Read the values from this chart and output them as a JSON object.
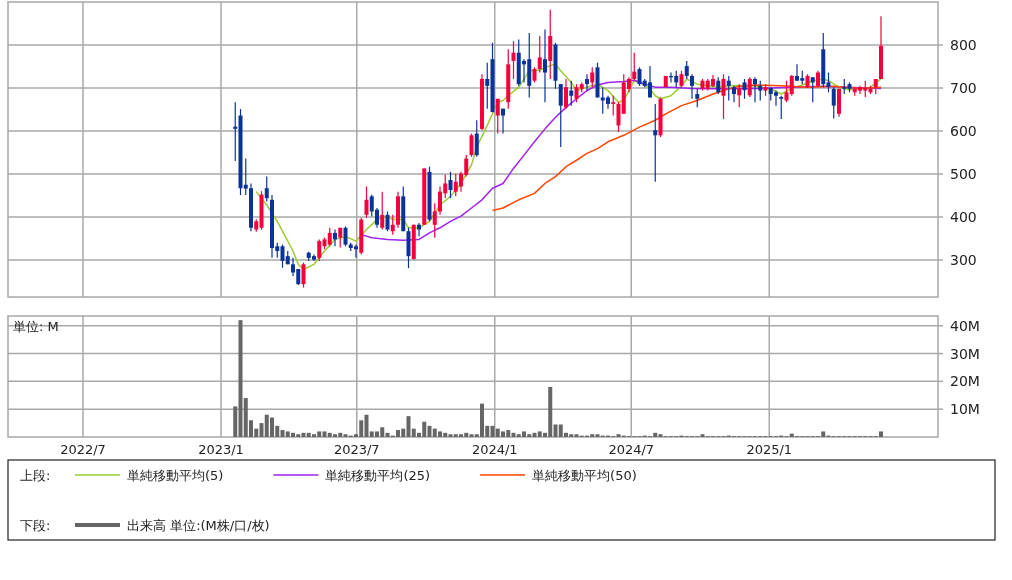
{
  "chart_data": [
    {
      "type": "candlestick",
      "colors": [
        "#0a3399",
        "#0a3399",
        "#0a3399",
        "#0a3399",
        "#f5003c",
        "#f5003c",
        "#0a3399",
        "#0a3399",
        "#0a3399",
        "#0a3399",
        "#0a3399",
        "#0a3399",
        "#0a3399",
        "#f5003c",
        "#0a3399",
        "#0a3399",
        "#f5003c",
        "#f5003c",
        "#f5003c",
        "#0a3399",
        "#f5003c",
        "#0a3399",
        "#0a3399",
        "#0a3399",
        "#f5003c",
        "#f5003c",
        "#0a3399",
        "#0a3399",
        "#f5003c",
        "#0a3399",
        "#f5003c",
        "#f5003c",
        "#0a3399",
        "#0a3399",
        "#f5003c",
        "#0a3399",
        "#f5003c",
        "#0a3399",
        "#f5003c",
        "#f5003c",
        "#f5003c",
        "#0a3399",
        "#f5003c",
        "#f5003c",
        "#f5003c",
        "#f5003c",
        "#0a3399",
        "#f5003c",
        "#0a3399",
        "#0a3399",
        "#f5003c",
        "#0a3399",
        "#f5003c",
        "#f5003c",
        "#0a3399",
        "#0a3399",
        "#0a3399",
        "#f5003c",
        "#f5003c",
        "#0a3399",
        "#f5003c",
        "#0a3399",
        "#0a3399",
        "#f5003c",
        "#0a3399",
        "#f5003c",
        "#f5003c",
        "#0a3399",
        "#f5003c",
        "#0a3399",
        "#0a3399",
        "#0a3399",
        "#f5003c",
        "#f5003c",
        "#f5003c",
        "#f5003c",
        "#f5003c",
        "#0a3399",
        "#0a3399",
        "#0a3399",
        "#0a3399",
        "#f5003c",
        "#f5003c",
        "#0a3399",
        "#0a3399",
        "#f5003c",
        "#0a3399",
        "#0a3399",
        "#0a3399",
        "#f5003c",
        "#f5003c",
        "#f5003c",
        "#0a3399",
        "#f5003c",
        "#0a3399",
        "#0a3399",
        "#f5003c",
        "#0a3399",
        "#f5003c",
        "#0a3399",
        "#0a3399",
        "#f5003c",
        "#0a3399",
        "#0a3399",
        "#0a3399",
        "#f5003c",
        "#f5003c",
        "#0a3399",
        "#0a3399",
        "#f5003c",
        "#0a3399",
        "#f5003c",
        "#0a3399",
        "#0a3399",
        "#0a3399",
        "#f5003c",
        "#0a3399",
        "#0a3399",
        "#f5003c",
        "#f5003c",
        "#f5003c",
        "#f5003c",
        "#f5003c",
        "#f5003c"
      ],
      "xlim": [
        "2022-03-23",
        "2025-08-14"
      ],
      "ylim": [
        214,
        900
      ],
      "yticks": [
        300,
        400,
        500,
        600,
        700,
        800
      ],
      "xticks": [
        {
          "value": "2022-07-01",
          "label": null
        },
        {
          "value": "2023-01-01",
          "label": null
        },
        {
          "value": "2023-07-01",
          "label": null
        },
        {
          "value": "2024-01-01",
          "label": null
        },
        {
          "value": "2024-07-01",
          "label": null
        },
        {
          "value": "2025-01-01",
          "label": null
        }
      ],
      "tick_labels": "y",
      "grid": true,
      "legend": "bottom",
      "legend_title": "上段:",
      "x": [
        "2023-01-20",
        "2023-01-27",
        "2023-02-03",
        "2023-02-10",
        "2023-02-17",
        "2023-02-24",
        "2023-03-03",
        "2023-03-10",
        "2023-03-17",
        "2023-03-24",
        "2023-03-31",
        "2023-04-07",
        "2023-04-14",
        "2023-04-21",
        "2023-04-28",
        "2023-05-05",
        "2023-05-12",
        "2023-05-19",
        "2023-05-26",
        "2023-06-02",
        "2023-06-09",
        "2023-06-16",
        "2023-06-23",
        "2023-06-30",
        "2023-07-07",
        "2023-07-14",
        "2023-07-21",
        "2023-07-28",
        "2023-08-04",
        "2023-08-11",
        "2023-08-18",
        "2023-08-25",
        "2023-09-01",
        "2023-09-08",
        "2023-09-15",
        "2023-09-22",
        "2023-09-29",
        "2023-10-06",
        "2023-10-13",
        "2023-10-20",
        "2023-10-27",
        "2023-11-03",
        "2023-11-10",
        "2023-11-17",
        "2023-11-24",
        "2023-12-01",
        "2023-12-08",
        "2023-12-15",
        "2023-12-22",
        "2023-12-29",
        "2024-01-05",
        "2024-01-12",
        "2024-01-19",
        "2024-01-26",
        "2024-02-02",
        "2024-02-09",
        "2024-02-16",
        "2024-02-23",
        "2024-03-01",
        "2024-03-08",
        "2024-03-15",
        "2024-03-22",
        "2024-03-29",
        "2024-04-05",
        "2024-04-12",
        "2024-04-19",
        "2024-04-26",
        "2024-05-03",
        "2024-05-10",
        "2024-05-17",
        "2024-05-24",
        "2024-05-31",
        "2024-06-07",
        "2024-06-14",
        "2024-06-21",
        "2024-06-28",
        "2024-07-05",
        "2024-07-12",
        "2024-07-19",
        "2024-07-26",
        "2024-08-02",
        "2024-08-09",
        "2024-08-16",
        "2024-08-23",
        "2024-08-30",
        "2024-09-06",
        "2024-09-13",
        "2024-09-20",
        "2024-09-27",
        "2024-10-04",
        "2024-10-11",
        "2024-10-18",
        "2024-10-25",
        "2024-11-01",
        "2024-11-08",
        "2024-11-15",
        "2024-11-22",
        "2024-11-29",
        "2024-12-06",
        "2024-12-13",
        "2024-12-20",
        "2024-12-27",
        "2025-01-03",
        "2025-01-10",
        "2025-01-17",
        "2025-01-24",
        "2025-01-31",
        "2025-02-07",
        "2025-02-14",
        "2025-02-21",
        "2025-02-28",
        "2025-03-07",
        "2025-03-14",
        "2025-03-21",
        "2025-03-28",
        "2025-04-04",
        "2025-04-11",
        "2025-04-18",
        "2025-04-25",
        "2025-05-02",
        "2025-05-09",
        "2025-05-16",
        "2025-05-23",
        "2025-05-30"
      ],
      "ohlc": [
        [
          610,
          667,
          530,
          605
        ],
        [
          636,
          651,
          451,
          467
        ],
        [
          475,
          536,
          451,
          466
        ],
        [
          467,
          478,
          367,
          375
        ],
        [
          371,
          395,
          366,
          390
        ],
        [
          375,
          460,
          370,
          452
        ],
        [
          467,
          494,
          436,
          444
        ],
        [
          440,
          451,
          305,
          328
        ],
        [
          332,
          340,
          305,
          321
        ],
        [
          332,
          336,
          282,
          298
        ],
        [
          309,
          321,
          290,
          290
        ],
        [
          290,
          305,
          263,
          271
        ],
        [
          279,
          279,
          242,
          244
        ],
        [
          244,
          294,
          236,
          290
        ],
        [
          317,
          319,
          298,
          305
        ],
        [
          309,
          313,
          298,
          301
        ],
        [
          305,
          348,
          298,
          344
        ],
        [
          332,
          352,
          325,
          348
        ],
        [
          336,
          375,
          332,
          363
        ],
        [
          363,
          371,
          332,
          348
        ],
        [
          352,
          375,
          329,
          375
        ],
        [
          375,
          378,
          332,
          336
        ],
        [
          336,
          340,
          321,
          328
        ],
        [
          332,
          336,
          305,
          325
        ],
        [
          317,
          398,
          313,
          394
        ],
        [
          405,
          471,
          398,
          440
        ],
        [
          448,
          452,
          402,
          413
        ],
        [
          417,
          421,
          375,
          382
        ],
        [
          375,
          459,
          371,
          405
        ],
        [
          405,
          413,
          367,
          371
        ],
        [
          367,
          405,
          359,
          382
        ],
        [
          382,
          459,
          375,
          448
        ],
        [
          448,
          471,
          367,
          367
        ],
        [
          367,
          375,
          281,
          309
        ],
        [
          302,
          382,
          302,
          382
        ],
        [
          382,
          386,
          355,
          371
        ],
        [
          382,
          513,
          382,
          513
        ],
        [
          505,
          517,
          390,
          394
        ],
        [
          382,
          432,
          352,
          413
        ],
        [
          413,
          471,
          405,
          459
        ],
        [
          455,
          498,
          444,
          478
        ],
        [
          486,
          505,
          444,
          463
        ],
        [
          459,
          501,
          448,
          482
        ],
        [
          471,
          505,
          459,
          501
        ],
        [
          498,
          544,
          494,
          536
        ],
        [
          544,
          594,
          540,
          590
        ],
        [
          594,
          625,
          540,
          544
        ],
        [
          605,
          732,
          602,
          721
        ],
        [
          721,
          759,
          652,
          705
        ],
        [
          767,
          805,
          644,
          644
        ],
        [
          636,
          675,
          594,
          675
        ],
        [
          652,
          652,
          594,
          636
        ],
        [
          667,
          790,
          652,
          755
        ],
        [
          763,
          809,
          721,
          782
        ],
        [
          782,
          813,
          705,
          709
        ],
        [
          763,
          767,
          713,
          755
        ],
        [
          767,
          828,
          678,
          705
        ],
        [
          717,
          748,
          713,
          744
        ],
        [
          744,
          821,
          736,
          771
        ],
        [
          767,
          836,
          667,
          736
        ],
        [
          763,
          882,
          721,
          821
        ],
        [
          801,
          805,
          698,
          717
        ],
        [
          709,
          709,
          563,
          659
        ],
        [
          655,
          721,
          652,
          702
        ],
        [
          694,
          717,
          659,
          682
        ],
        [
          675,
          709,
          667,
          702
        ],
        [
          698,
          713,
          690,
          709
        ],
        [
          721,
          732,
          694,
          709
        ],
        [
          713,
          748,
          702,
          736
        ],
        [
          748,
          759,
          678,
          678
        ],
        [
          678,
          702,
          640,
          671
        ],
        [
          678,
          682,
          652,
          663
        ],
        [
          663,
          682,
          636,
          667
        ],
        [
          613,
          667,
          598,
          663
        ],
        [
          640,
          732,
          640,
          713
        ],
        [
          698,
          725,
          690,
          721
        ],
        [
          721,
          782,
          717,
          738
        ],
        [
          744,
          748,
          705,
          709
        ],
        [
          717,
          721,
          702,
          705
        ],
        [
          713,
          751,
          678,
          678
        ],
        [
          602,
          663,
          482,
          590
        ],
        [
          590,
          678,
          586,
          675
        ],
        [
          702,
          728,
          702,
          728
        ],
        [
          728,
          736,
          713,
          725
        ],
        [
          728,
          740,
          702,
          713
        ],
        [
          705,
          740,
          702,
          732
        ],
        [
          751,
          763,
          721,
          728
        ],
        [
          728,
          732,
          675,
          705
        ],
        [
          686,
          698,
          655,
          675
        ],
        [
          698,
          721,
          694,
          717
        ],
        [
          698,
          721,
          694,
          717
        ],
        [
          705,
          730,
          702,
          721
        ],
        [
          717,
          725,
          686,
          690
        ],
        [
          682,
          732,
          628,
          721
        ],
        [
          717,
          728,
          671,
          705
        ],
        [
          702,
          705,
          667,
          686
        ],
        [
          683,
          709,
          655,
          700
        ],
        [
          713,
          721,
          675,
          695
        ],
        [
          683,
          725,
          679,
          721
        ],
        [
          721,
          725,
          667,
          709
        ],
        [
          705,
          717,
          671,
          694
        ],
        [
          694,
          709,
          682,
          702
        ],
        [
          700,
          702,
          671,
          686
        ],
        [
          690,
          694,
          659,
          682
        ],
        [
          679,
          682,
          628,
          675
        ],
        [
          671,
          717,
          667,
          690
        ],
        [
          686,
          730,
          682,
          728
        ],
        [
          728,
          755,
          717,
          717
        ],
        [
          723,
          740,
          709,
          717
        ],
        [
          702,
          732,
          700,
          728
        ],
        [
          725,
          725,
          667,
          713
        ],
        [
          705,
          740,
          702,
          736
        ],
        [
          790,
          828,
          702,
          709
        ],
        [
          713,
          736,
          690,
          702
        ],
        [
          698,
          702,
          629,
          659
        ],
        [
          640,
          698,
          633,
          698
        ],
        [
          702,
          721,
          686,
          698
        ],
        [
          709,
          713,
          690,
          698
        ],
        [
          690,
          702,
          682,
          698
        ],
        [
          694,
          705,
          686,
          702
        ],
        [
          694,
          717,
          679,
          700
        ],
        [
          690,
          705,
          686,
          698
        ],
        [
          702,
          721,
          686,
          721
        ],
        [
          721,
          867,
          721,
          798
        ]
      ],
      "series": [
        {
          "name": "単純移動平均(5)",
          "type": "line",
          "color": "#9acd32",
          "x": [
            "2023-02-17",
            "2023-03-03",
            "2023-03-17",
            "2023-03-24",
            "2023-04-07",
            "2023-04-14",
            "2023-04-21",
            "2023-05-05",
            "2023-05-19",
            "2023-06-02",
            "2023-06-16",
            "2023-06-30",
            "2023-07-14",
            "2023-07-28",
            "2023-08-11",
            "2023-08-18",
            "2023-09-01",
            "2023-09-08",
            "2023-09-22",
            "2023-10-06",
            "2023-10-20",
            "2023-11-03",
            "2023-11-17",
            "2023-12-01",
            "2023-12-08",
            "2023-12-22",
            "2024-01-05",
            "2024-01-12",
            "2024-01-19",
            "2024-02-02",
            "2024-02-16",
            "2024-03-01",
            "2024-03-15",
            "2024-03-22",
            "2024-03-29",
            "2024-04-12",
            "2024-04-19",
            "2024-05-03",
            "2024-05-17",
            "2024-05-31",
            "2024-06-14",
            "2024-06-21",
            "2024-07-05",
            "2024-07-12",
            "2024-07-26",
            "2024-08-02",
            "2024-08-09",
            "2024-08-23",
            "2024-09-06",
            "2024-09-13",
            "2024-09-27",
            "2024-10-11",
            "2024-10-25",
            "2024-11-08",
            "2024-11-22",
            "2024-12-13",
            "2025-01-03",
            "2025-01-17",
            "2025-01-31",
            "2025-02-14",
            "2025-02-28",
            "2025-03-14",
            "2025-03-21",
            "2025-04-04",
            "2025-04-18",
            "2025-05-02",
            "2025-05-16",
            "2025-05-30"
          ],
          "values": [
            459,
            428,
            390,
            367,
            321,
            290,
            278,
            290,
            321,
            348,
            355,
            344,
            371,
            394,
            402,
            394,
            394,
            375,
            375,
            390,
            428,
            448,
            478,
            521,
            563,
            613,
            667,
            671,
            682,
            702,
            740,
            742,
            752,
            755,
            740,
            713,
            694,
            702,
            709,
            694,
            667,
            671,
            717,
            713,
            698,
            682,
            675,
            682,
            705,
            721,
            709,
            705,
            702,
            705,
            706,
            704,
            698,
            686,
            699,
            707,
            717,
            721,
            717,
            702,
            696,
            698,
            702,
            721
          ]
        },
        {
          "name": "単純移動平均(25)",
          "type": "line",
          "color": "#a020f0",
          "x": [
            "2023-07-07",
            "2023-07-21",
            "2023-08-11",
            "2023-09-01",
            "2023-09-22",
            "2023-10-06",
            "2023-10-20",
            "2023-11-03",
            "2023-11-17",
            "2023-12-01",
            "2023-12-15",
            "2023-12-29",
            "2024-01-12",
            "2024-01-26",
            "2024-02-09",
            "2024-02-23",
            "2024-03-08",
            "2024-03-22",
            "2024-04-05",
            "2024-04-19",
            "2024-05-03",
            "2024-05-17",
            "2024-05-31",
            "2024-06-21",
            "2024-07-05",
            "2024-07-19",
            "2024-08-02",
            "2024-08-23",
            "2024-09-20",
            "2024-10-18",
            "2024-12-13",
            "2025-03-14",
            "2025-03-28",
            "2025-05-30"
          ],
          "values": [
            359,
            352,
            348,
            346,
            348,
            363,
            375,
            390,
            402,
            421,
            440,
            467,
            478,
            513,
            544,
            575,
            605,
            632,
            655,
            675,
            694,
            707,
            713,
            715,
            718,
            709,
            702,
            702,
            699,
            698,
            699,
            704,
            703,
            699
          ]
        },
        {
          "name": "単純移動平均(50)",
          "type": "line",
          "color": "#ff4500",
          "x": [
            "2023-12-29",
            "2024-01-12",
            "2024-02-02",
            "2024-02-23",
            "2024-03-08",
            "2024-03-22",
            "2024-04-05",
            "2024-04-19",
            "2024-05-03",
            "2024-05-17",
            "2024-05-31",
            "2024-06-21",
            "2024-07-12",
            "2024-08-02",
            "2024-08-16",
            "2024-09-06",
            "2024-09-27",
            "2024-10-18",
            "2024-11-08",
            "2024-11-22",
            "2024-12-13",
            "2025-01-17",
            "2025-02-21",
            "2025-03-28",
            "2025-05-02",
            "2025-05-30"
          ],
          "values": [
            415,
            421,
            440,
            455,
            478,
            494,
            517,
            532,
            548,
            559,
            575,
            590,
            609,
            625,
            640,
            659,
            671,
            686,
            698,
            704,
            707,
            705,
            702,
            704,
            699,
            702
          ]
        }
      ]
    },
    {
      "type": "bar",
      "xlim": [
        "2022-03-23",
        "2025-08-14"
      ],
      "ylim": [
        0,
        43.5
      ],
      "yticks": [
        {
          "value": 10,
          "label": "10M"
        },
        {
          "value": 20,
          "label": "20M"
        },
        {
          "value": 30,
          "label": "30M"
        },
        {
          "value": 40,
          "label": "40M"
        }
      ],
      "xticks": [
        {
          "value": "2022-07-01",
          "label": "2022/7"
        },
        {
          "value": "2023-01-01",
          "label": "2023/1"
        },
        {
          "value": "2023-07-01",
          "label": "2023/7"
        },
        {
          "value": "2024-01-01",
          "label": "2024/1"
        },
        {
          "value": "2024-07-01",
          "label": "2024/7"
        },
        {
          "value": "2025-01-01",
          "label": "2025/1"
        }
      ],
      "grid": true,
      "legend": "bottom",
      "legend_title": "下段:",
      "ylabel": "単位: M",
      "x": [
        "2023-01-20",
        "2023-01-27",
        "2023-02-03",
        "2023-02-10",
        "2023-02-17",
        "2023-02-24",
        "2023-03-03",
        "2023-03-10",
        "2023-03-17",
        "2023-03-24",
        "2023-03-31",
        "2023-04-07",
        "2023-04-14",
        "2023-04-21",
        "2023-04-28",
        "2023-05-05",
        "2023-05-12",
        "2023-05-19",
        "2023-05-26",
        "2023-06-02",
        "2023-06-09",
        "2023-06-16",
        "2023-06-23",
        "2023-06-30",
        "2023-07-07",
        "2023-07-14",
        "2023-07-21",
        "2023-07-28",
        "2023-08-04",
        "2023-08-11",
        "2023-08-18",
        "2023-08-25",
        "2023-09-01",
        "2023-09-08",
        "2023-09-15",
        "2023-09-22",
        "2023-09-29",
        "2023-10-06",
        "2023-10-13",
        "2023-10-20",
        "2023-10-27",
        "2023-11-03",
        "2023-11-10",
        "2023-11-17",
        "2023-11-24",
        "2023-12-01",
        "2023-12-08",
        "2023-12-15",
        "2023-12-22",
        "2023-12-29",
        "2024-01-05",
        "2024-01-12",
        "2024-01-19",
        "2024-01-26",
        "2024-02-02",
        "2024-02-09",
        "2024-02-16",
        "2024-02-23",
        "2024-03-01",
        "2024-03-08",
        "2024-03-15",
        "2024-03-22",
        "2024-03-29",
        "2024-04-05",
        "2024-04-12",
        "2024-04-19",
        "2024-04-26",
        "2024-05-03",
        "2024-05-10",
        "2024-05-17",
        "2024-05-24",
        "2024-05-31",
        "2024-06-07",
        "2024-06-14",
        "2024-06-21",
        "2024-06-28",
        "2024-07-05",
        "2024-07-12",
        "2024-07-19",
        "2024-07-26",
        "2024-08-02",
        "2024-08-09",
        "2024-08-16",
        "2024-08-23",
        "2024-08-30",
        "2024-09-06",
        "2024-09-13",
        "2024-09-20",
        "2024-09-27",
        "2024-10-04",
        "2024-10-11",
        "2024-10-18",
        "2024-10-25",
        "2024-11-01",
        "2024-11-08",
        "2024-11-15",
        "2024-11-22",
        "2024-11-29",
        "2024-12-06",
        "2024-12-13",
        "2024-12-20",
        "2024-12-27",
        "2025-01-03",
        "2025-01-10",
        "2025-01-17",
        "2025-01-24",
        "2025-01-31",
        "2025-02-07",
        "2025-02-14",
        "2025-02-21",
        "2025-02-28",
        "2025-03-07",
        "2025-03-14",
        "2025-03-21",
        "2025-03-28",
        "2025-04-04",
        "2025-04-11",
        "2025-04-18",
        "2025-04-25",
        "2025-05-02",
        "2025-05-09",
        "2025-05-16",
        "2025-05-23",
        "2025-05-30"
      ],
      "series": [
        {
          "name": "出来高 単位:(M株/口/枚)",
          "color": "#666666",
          "values": [
            11,
            42,
            14,
            6,
            3,
            5,
            8,
            7,
            4,
            2.5,
            2,
            1.5,
            1,
            1.5,
            1.5,
            1,
            2,
            2,
            1.5,
            1,
            1.5,
            1,
            0.5,
            1,
            6,
            8,
            2,
            2,
            3.5,
            1.5,
            0.5,
            2.5,
            3,
            7.5,
            3,
            1.5,
            5.5,
            4,
            3,
            2,
            1.5,
            1,
            1,
            1,
            1.5,
            1,
            1,
            12,
            4,
            4,
            3,
            2,
            2.5,
            1.5,
            1,
            2,
            1,
            1.5,
            2,
            1.5,
            18,
            4.5,
            4.5,
            1.5,
            1,
            1,
            0.5,
            0.5,
            1,
            1,
            0.5,
            0.5,
            0.3,
            1,
            0.5,
            0.3,
            0.3,
            0.3,
            0.5,
            0.3,
            1.5,
            1,
            0.3,
            0.3,
            0.3,
            0.5,
            0.3,
            0.3,
            0.3,
            1,
            0.3,
            0.3,
            0.3,
            0.3,
            0.5,
            0.3,
            0.3,
            0.3,
            0.3,
            0.3,
            0.3,
            0.3,
            0.3,
            0.3,
            0.5,
            0.3,
            1.2,
            0.3,
            0.3,
            0.3,
            0.3,
            0.3,
            2,
            0.5,
            0.3,
            0.3,
            0.3,
            0.3,
            0.3,
            0.3,
            0.3,
            0.3,
            0.3,
            2
          ]
        }
      ]
    }
  ]
}
